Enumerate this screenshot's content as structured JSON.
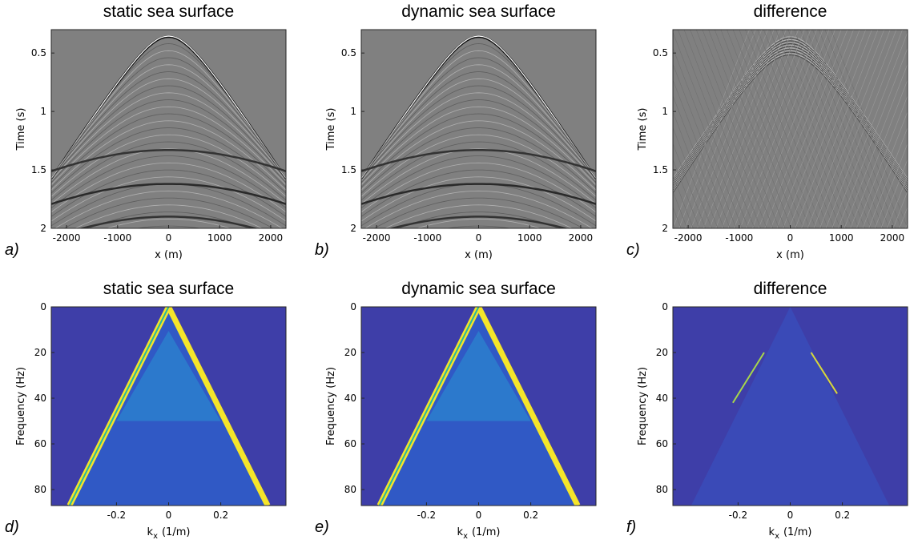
{
  "chart_data": [
    {
      "type": "image",
      "colormap": "gray",
      "title": "static sea surface",
      "panel_label": "a)",
      "xlabel": "x (m)",
      "ylabel": "Time (s)",
      "xlim": [
        -2300,
        2300
      ],
      "ylim": [
        0.3,
        2
      ],
      "xticks": [
        -2000,
        -1000,
        0,
        1000,
        2000
      ],
      "yticks": [
        0.5,
        1,
        1.5,
        2
      ]
    },
    {
      "type": "image",
      "colormap": "gray",
      "title": "dynamic sea surface",
      "panel_label": "b)",
      "xlabel": "x (m)",
      "ylabel": "Time (s)",
      "xlim": [
        -2300,
        2300
      ],
      "ylim": [
        0.3,
        2
      ],
      "xticks": [
        -2000,
        -1000,
        0,
        1000,
        2000
      ],
      "yticks": [
        0.5,
        1,
        1.5,
        2
      ]
    },
    {
      "type": "image",
      "colormap": "gray-diff",
      "title": "difference",
      "panel_label": "c)",
      "xlabel": "x (m)",
      "ylabel": "Time (s)",
      "xlim": [
        -2300,
        2300
      ],
      "ylim": [
        0.3,
        2
      ],
      "xticks": [
        -2000,
        -1000,
        0,
        1000,
        2000
      ],
      "yticks": [
        0.5,
        1,
        1.5,
        2
      ]
    },
    {
      "type": "image",
      "colormap": "parula",
      "title": "static sea surface",
      "panel_label": "d)",
      "xlabel": [
        "k",
        "x",
        "(1/m)"
      ],
      "ylabel": "Frequency (Hz)",
      "xlim": [
        -0.45,
        0.45
      ],
      "ylim": [
        0,
        87
      ],
      "xticks": [
        -0.2,
        0,
        0.2
      ],
      "yticks": [
        0,
        20,
        40,
        60,
        80
      ]
    },
    {
      "type": "image",
      "colormap": "parula",
      "title": "dynamic sea surface",
      "panel_label": "e)",
      "xlabel": [
        "k",
        "x",
        "(1/m)"
      ],
      "ylabel": "Frequency (Hz)",
      "xlim": [
        -0.45,
        0.45
      ],
      "ylim": [
        0,
        87
      ],
      "xticks": [
        -0.2,
        0,
        0.2
      ],
      "yticks": [
        0,
        20,
        40,
        60,
        80
      ]
    },
    {
      "type": "image",
      "colormap": "parula-diff",
      "title": "difference",
      "panel_label": "f)",
      "xlabel": [
        "k",
        "x",
        "(1/m)"
      ],
      "ylabel": "Frequency (Hz)",
      "xlim": [
        -0.45,
        0.45
      ],
      "ylim": [
        0,
        87
      ],
      "xticks": [
        -0.2,
        0,
        0.2
      ],
      "yticks": [
        0,
        20,
        40,
        60,
        80
      ]
    }
  ]
}
